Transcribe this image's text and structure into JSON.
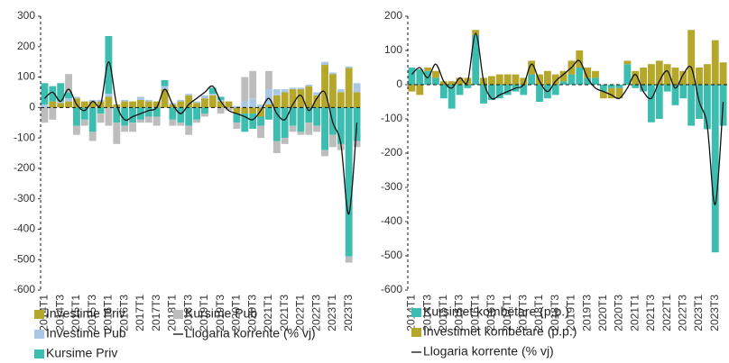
{
  "chart_data": [
    {
      "type": "bar",
      "stacked": true,
      "categories": [
        "2014T1",
        null,
        "2014T3",
        null,
        "2015T1",
        null,
        "2015T3",
        null,
        "2016T1",
        null,
        "2016T3",
        null,
        "2017T1",
        null,
        "2017T3",
        null,
        "2018T1",
        null,
        "2018T3",
        null,
        "2019T1",
        null,
        "2019T3",
        null,
        "2020T1",
        null,
        "2020T3",
        null,
        "2021T1",
        null,
        "2021T3",
        null,
        "2022T1",
        null,
        "2022T3",
        null,
        "2023T1",
        null,
        "2023T3",
        null
      ],
      "ylim": [
        -600,
        300
      ],
      "yticks": [
        -600,
        -500,
        -400,
        -300,
        -200,
        -100,
        0,
        100,
        200,
        300
      ],
      "series": [
        {
          "name": "Investime Priv",
          "type": "bar",
          "color": "#b5a72a",
          "values": [
            0,
            20,
            15,
            20,
            30,
            20,
            20,
            20,
            35,
            10,
            20,
            20,
            25,
            20,
            20,
            60,
            10,
            20,
            40,
            15,
            30,
            40,
            20,
            20,
            -20,
            -20,
            -20,
            -30,
            10,
            40,
            50,
            60,
            60,
            70,
            40,
            140,
            110,
            50,
            130,
            50
          ]
        },
        {
          "name": "Investime Pub",
          "type": "bar",
          "color": "#a9c8e6",
          "values": [
            10,
            0,
            5,
            10,
            5,
            0,
            5,
            5,
            10,
            0,
            5,
            0,
            10,
            5,
            0,
            10,
            5,
            5,
            5,
            5,
            10,
            5,
            5,
            0,
            5,
            20,
            30,
            10,
            50,
            20,
            10,
            5,
            5,
            5,
            10,
            10,
            5,
            10,
            5,
            30
          ]
        },
        {
          "name": "Kursime Priv",
          "type": "bar",
          "color": "#3dbdb0",
          "values": [
            70,
            50,
            60,
            20,
            -60,
            -40,
            -80,
            -20,
            190,
            -50,
            -60,
            -50,
            -40,
            -30,
            -30,
            20,
            -40,
            -50,
            -60,
            -40,
            -20,
            20,
            10,
            0,
            -30,
            -60,
            -50,
            -30,
            -40,
            -110,
            -100,
            -60,
            -80,
            -50,
            -60,
            -140,
            -90,
            -120,
            -490,
            -110
          ]
        },
        {
          "name": "Kursime Pub",
          "type": "bar",
          "color": "#bdbdbd",
          "values": [
            -50,
            -40,
            0,
            60,
            -30,
            -20,
            -30,
            -30,
            -60,
            -70,
            -20,
            -30,
            -10,
            -20,
            -30,
            0,
            -20,
            -10,
            -30,
            -10,
            -10,
            0,
            -20,
            -10,
            -20,
            80,
            90,
            -40,
            60,
            -40,
            -20,
            -20,
            -10,
            -40,
            -20,
            -20,
            -40,
            -20,
            -20,
            -20
          ]
        },
        {
          "name": "Llogaria korrente (% vj)",
          "type": "line",
          "color": "#111111",
          "values": [
            30,
            50,
            20,
            60,
            10,
            -10,
            20,
            10,
            150,
            10,
            -40,
            -30,
            -20,
            -10,
            0,
            60,
            10,
            -20,
            10,
            30,
            50,
            70,
            20,
            -10,
            -20,
            -30,
            -40,
            -10,
            30,
            -20,
            -40,
            10,
            40,
            -10,
            30,
            50,
            -50,
            -120,
            -350,
            -50
          ]
        }
      ]
    },
    {
      "type": "bar",
      "stacked": true,
      "categories": [
        "2014T1",
        null,
        "2014T3",
        null,
        "2015T1",
        null,
        "2015T3",
        null,
        "2016T1",
        null,
        "2016T3",
        null,
        "2017T1",
        null,
        "2017T3",
        null,
        "2018T1",
        null,
        "2018T3",
        null,
        "2019T1",
        null,
        "2019T3",
        null,
        "2020T1",
        null,
        "2020T3",
        null,
        "2021T1",
        null,
        "2021T3",
        null,
        "2022T1",
        null,
        "2022T3",
        null,
        "2023T1",
        null,
        "2023T3",
        null
      ],
      "ylim": [
        -600,
        200
      ],
      "yticks": [
        -600,
        -500,
        -400,
        -300,
        -200,
        -100,
        0,
        100,
        200
      ],
      "series": [
        {
          "name": "Kursimet kombëtare (p.p.)",
          "type": "bar",
          "color": "#3dbdb0",
          "values": [
            50,
            45,
            40,
            20,
            -40,
            -70,
            -30,
            -10,
            145,
            -55,
            -45,
            -40,
            -30,
            -20,
            -30,
            30,
            -50,
            -40,
            -30,
            10,
            30,
            50,
            20,
            20,
            -20,
            -10,
            -10,
            60,
            -10,
            -20,
            -110,
            -100,
            -20,
            -60,
            -40,
            -120,
            -100,
            -130,
            -490,
            -120
          ]
        },
        {
          "name": "Investimet kombëtare (p.p.)",
          "type": "bar",
          "color": "#b5a72a",
          "values": [
            -20,
            -30,
            10,
            20,
            10,
            10,
            20,
            20,
            15,
            20,
            25,
            30,
            30,
            30,
            20,
            40,
            30,
            40,
            30,
            30,
            40,
            50,
            30,
            20,
            -20,
            -30,
            -30,
            10,
            40,
            50,
            60,
            70,
            60,
            50,
            40,
            160,
            50,
            60,
            130,
            65
          ]
        },
        {
          "name": "Llogaria korrente (% vj)",
          "type": "line",
          "color": "#111111",
          "values": [
            30,
            50,
            20,
            60,
            10,
            -10,
            20,
            10,
            150,
            10,
            -40,
            -30,
            -20,
            -10,
            0,
            60,
            10,
            -20,
            10,
            30,
            50,
            70,
            20,
            -10,
            -20,
            -30,
            -40,
            -10,
            30,
            -20,
            -40,
            10,
            40,
            -10,
            30,
            50,
            -50,
            -120,
            -350,
            -50
          ]
        }
      ]
    }
  ]
}
